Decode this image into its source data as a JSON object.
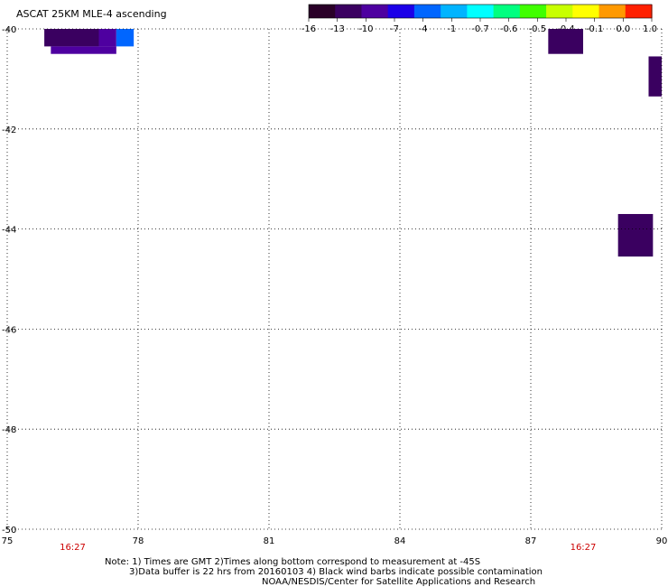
{
  "title": "ASCAT 25KM MLE-4 ascending",
  "colorbar": {
    "labels": [
      "-16",
      "-13",
      "-10",
      "-7",
      "-4",
      "-1",
      "-0.7",
      "-0.6",
      "-0.5",
      "-0.4",
      "-0.1",
      "0.0",
      "1.0"
    ],
    "colors": [
      "#2a0028",
      "#3a0060",
      "#4e00a0",
      "#1c00e8",
      "#0066ff",
      "#00b4ff",
      "#00ffff",
      "#00ff80",
      "#40ff00",
      "#c8ff00",
      "#ffff00",
      "#ff9900",
      "#ff2000"
    ]
  },
  "map": {
    "lon_ticks": [
      "75",
      "78",
      "81",
      "84",
      "87",
      "90"
    ],
    "lat_ticks": [
      "-40",
      "-42",
      "-44",
      "-46",
      "-48",
      "-50"
    ],
    "lon_range": [
      75,
      90
    ],
    "lat_range": [
      -40,
      -50
    ],
    "time_labels": [
      {
        "text": "16:27",
        "lon": 76.5
      },
      {
        "text": "16:27",
        "lon": 88.2
      }
    ]
  },
  "chart_data": {
    "type": "heatmap",
    "title": "ASCAT 25KM MLE-4 ascending",
    "x_unit": "longitude",
    "y_unit": "latitude",
    "xlim": [
      75,
      90
    ],
    "ylim": [
      -50,
      -40
    ],
    "cells": [
      {
        "lon0": 75.85,
        "lon1": 77.1,
        "lat0": -40.0,
        "lat1": -40.35,
        "color": "#3a0060"
      },
      {
        "lon0": 77.1,
        "lon1": 77.5,
        "lat0": -40.0,
        "lat1": -40.35,
        "color": "#4e00a0"
      },
      {
        "lon0": 77.5,
        "lon1": 77.9,
        "lat0": -40.0,
        "lat1": -40.35,
        "color": "#0066ff"
      },
      {
        "lon0": 76.0,
        "lon1": 77.5,
        "lat0": -40.35,
        "lat1": -40.5,
        "color": "#4e00a0"
      },
      {
        "lon0": 87.4,
        "lon1": 88.2,
        "lat0": -40.0,
        "lat1": -40.5,
        "color": "#3a0060"
      },
      {
        "lon0": 89.7,
        "lon1": 90.0,
        "lat0": -40.55,
        "lat1": -41.35,
        "color": "#3a0060"
      },
      {
        "lon0": 89.0,
        "lon1": 89.8,
        "lat0": -43.7,
        "lat1": -44.55,
        "color": "#3a0060"
      }
    ]
  },
  "notes": {
    "line1": "Note: 1) Times are GMT 2)Times along bottom correspond to measurement at -45S",
    "line2": "3)Data buffer is 22 hrs from 20160103 4) Black wind barbs indicate possible contamination",
    "line3": "NOAA/NESDIS/Center for Satellite Applications and Research"
  }
}
